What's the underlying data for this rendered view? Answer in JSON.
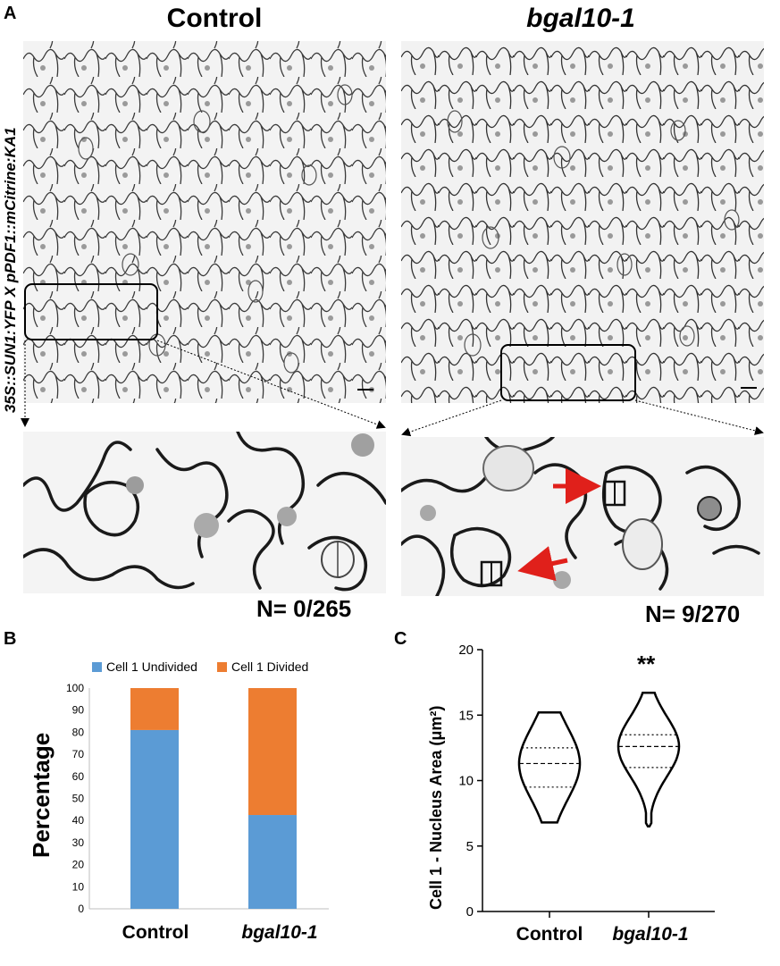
{
  "panel_a": {
    "label": "A",
    "control_title": "Control",
    "mutant_title": "bgal10-1",
    "genotype_label": "35S::SUN1:YFP X pPDF1::mCitrine:KA1",
    "control_count": "N= 0/265",
    "mutant_count": "N= 9/270",
    "arrow_color": "#e0201b"
  },
  "panel_b": {
    "label": "B"
  },
  "panel_c": {
    "label": "C",
    "significance": "**"
  },
  "chart_data": [
    {
      "type": "bar",
      "stacked": true,
      "categories": [
        "Control",
        "bgal10-1"
      ],
      "series": [
        {
          "name": "Cell 1 Undivided",
          "values": [
            81,
            42.5
          ],
          "color": "#5b9bd5"
        },
        {
          "name": "Cell 1 Divided",
          "values": [
            19,
            57.5
          ],
          "color": "#ed7d31"
        }
      ],
      "ylabel": "Percentage",
      "ylim": [
        0,
        100
      ],
      "yticks": [
        "0",
        "10",
        "20",
        "30",
        "40",
        "50",
        "60",
        "70",
        "80",
        "90",
        "100"
      ],
      "legend": "top"
    },
    {
      "type": "violin",
      "categories": [
        "Control",
        "bgal10-1"
      ],
      "ylabel": "Cell 1 - Nucleus Area (μm²)",
      "ylim": [
        0,
        20
      ],
      "yticks": [
        "0",
        "5",
        "10",
        "15",
        "20"
      ],
      "distributions": [
        {
          "name": "Control",
          "min": 6.8,
          "max": 15.2,
          "q1": 9.5,
          "median": 11.3,
          "q3": 12.5
        },
        {
          "name": "bgal10-1",
          "min": 6.5,
          "max": 16.7,
          "q1": 11.0,
          "median": 12.6,
          "q3": 13.5
        }
      ]
    }
  ]
}
